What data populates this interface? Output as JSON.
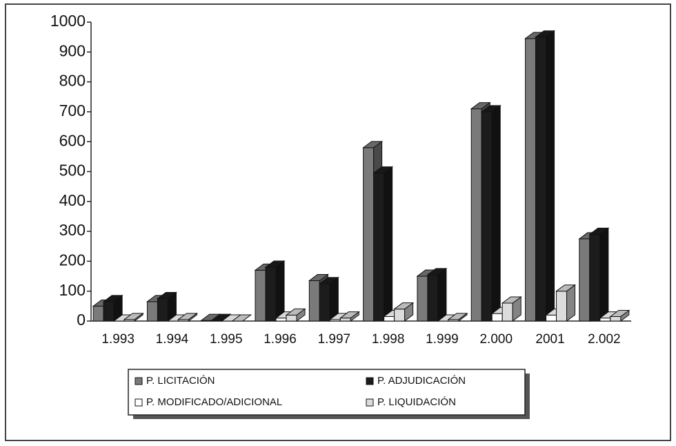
{
  "chart_data": {
    "type": "bar3d",
    "categories": [
      "1.993",
      "1.994",
      "1.995",
      "1.996",
      "1.997",
      "1.998",
      "1.999",
      "2.000",
      "2001",
      "2.002"
    ],
    "series": [
      {
        "name": "P. LICITACIÓN",
        "color": "#7a7a7a",
        "values": [
          50,
          65,
          2,
          170,
          135,
          580,
          150,
          710,
          945,
          275
        ]
      },
      {
        "name": "P. ADJUDICACIÓN",
        "color": "#1c1c1c",
        "values": [
          65,
          75,
          2,
          180,
          125,
          495,
          155,
          700,
          950,
          290
        ]
      },
      {
        "name": "P. MODIFICADO/ADICIONAL",
        "color": "#ffffff",
        "values": [
          0,
          0,
          0,
          10,
          5,
          15,
          0,
          25,
          20,
          10
        ]
      },
      {
        "name": "P. LIQUIDACIÓN",
        "color": "#dcdcdc",
        "values": [
          5,
          5,
          0,
          20,
          10,
          40,
          5,
          60,
          100,
          15
        ]
      }
    ],
    "ylim": [
      0,
      1000
    ],
    "yticks": [
      0,
      100,
      200,
      300,
      400,
      500,
      600,
      700,
      800,
      900,
      1000
    ],
    "legend": "bottom"
  }
}
